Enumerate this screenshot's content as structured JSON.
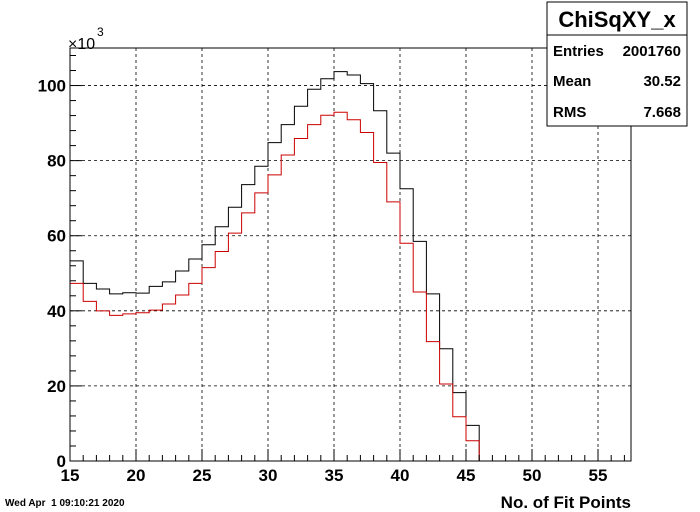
{
  "timestamp": "Wed Apr  1 09:10:21 2020",
  "stats": {
    "title": "ChiSqXY_x",
    "rows": [
      {
        "label": "Entries",
        "value": "2001760"
      },
      {
        "label": "Mean",
        "value": "30.52"
      },
      {
        "label": "RMS",
        "value": "7.668"
      }
    ]
  },
  "chart_data": {
    "type": "line",
    "title": "",
    "xlabel": "No. of Fit Points",
    "ylabel": "",
    "y_exponent_label": "×10",
    "y_exponent": "3",
    "xlim": [
      15,
      57.5
    ],
    "ylim": [
      0,
      110
    ],
    "x_ticks": [
      15,
      20,
      25,
      30,
      35,
      40,
      45,
      50,
      55
    ],
    "y_ticks": [
      0,
      20,
      40,
      60,
      80,
      100
    ],
    "grid": true,
    "bin_width": 1,
    "bin_start": 15,
    "series": [
      {
        "color": "#000000",
        "values": [
          53.3,
          47.3,
          45.8,
          44.5,
          44.8,
          44.7,
          46.5,
          47.7,
          50.6,
          53.8,
          57.6,
          62.4,
          67.6,
          73.6,
          78.5,
          84.8,
          89.6,
          94.5,
          99.0,
          101.8,
          103.7,
          102.8,
          100.5,
          93.3,
          82.0,
          72.5,
          58.5,
          44.5,
          29.9,
          18.2,
          9.5,
          0,
          0,
          0,
          0
        ]
      },
      {
        "color": "#cc0000",
        "values": [
          47.3,
          42.5,
          40.0,
          38.8,
          39.2,
          39.5,
          40.2,
          41.8,
          44.2,
          47.3,
          51.5,
          55.8,
          60.7,
          66.1,
          71.4,
          76.2,
          81.5,
          85.9,
          89.6,
          92.1,
          92.9,
          90.9,
          87.5,
          79.5,
          69.0,
          58.0,
          45.0,
          31.8,
          20.5,
          11.8,
          5.4,
          0,
          0,
          0,
          0
        ]
      }
    ]
  }
}
